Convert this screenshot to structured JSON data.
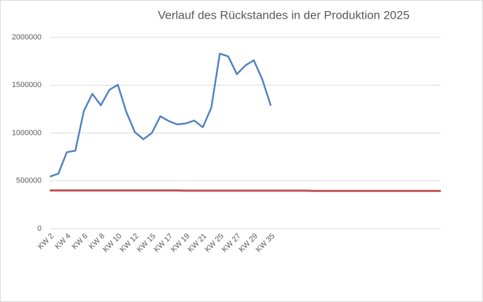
{
  "chart_data": {
    "type": "line",
    "title": "Verlauf des Rückstandes in der Produktion 2025",
    "categories": [
      "KW 2",
      null,
      "KW 4",
      null,
      "KW 6",
      null,
      "KW 8",
      null,
      "KW 10",
      null,
      "KW 12",
      null,
      "KW 15",
      null,
      "KW 17",
      null,
      "KW 19",
      null,
      "KW 21",
      null,
      "KW 25",
      null,
      "KW 27",
      null,
      "KW 29",
      null,
      "KW 35",
      null,
      null,
      null,
      null,
      null,
      null,
      null,
      null,
      null,
      null,
      null,
      null,
      null,
      null,
      null,
      null,
      null,
      null,
      null,
      null
    ],
    "series": [
      {
        "color": "#4f81bd",
        "values": [
          545000,
          575000,
          800000,
          815000,
          1230000,
          1410000,
          1290000,
          1450000,
          1505000,
          1220000,
          1010000,
          935000,
          1000000,
          1175000,
          1125000,
          1090000,
          1100000,
          1130000,
          1060000,
          1265000,
          1830000,
          1800000,
          1615000,
          1705000,
          1760000,
          1560000,
          1285000,
          null,
          null,
          null,
          null,
          null,
          null,
          null,
          null,
          null,
          null,
          null,
          null,
          null,
          null,
          null,
          null,
          null,
          null,
          null,
          null
        ]
      },
      {
        "color": "#c0504d",
        "values": [
          400000,
          400000,
          400000,
          400000,
          400000,
          400000,
          400000,
          400000,
          400000,
          400000,
          400000,
          400000,
          400000,
          400000,
          400000,
          400000,
          398000,
          398000,
          398000,
          398000,
          398000,
          398000,
          398000,
          398000,
          398000,
          398000,
          398000,
          398000,
          398000,
          398000,
          398000,
          395000,
          395000,
          395000,
          395000,
          395000,
          395000,
          395000,
          395000,
          395000,
          395000,
          395000,
          395000,
          395000,
          395000,
          395000,
          395000
        ]
      }
    ],
    "ylim": [
      0,
      2000000
    ],
    "yticks": [
      0,
      500000,
      1000000,
      1500000,
      2000000
    ],
    "grid": true
  }
}
